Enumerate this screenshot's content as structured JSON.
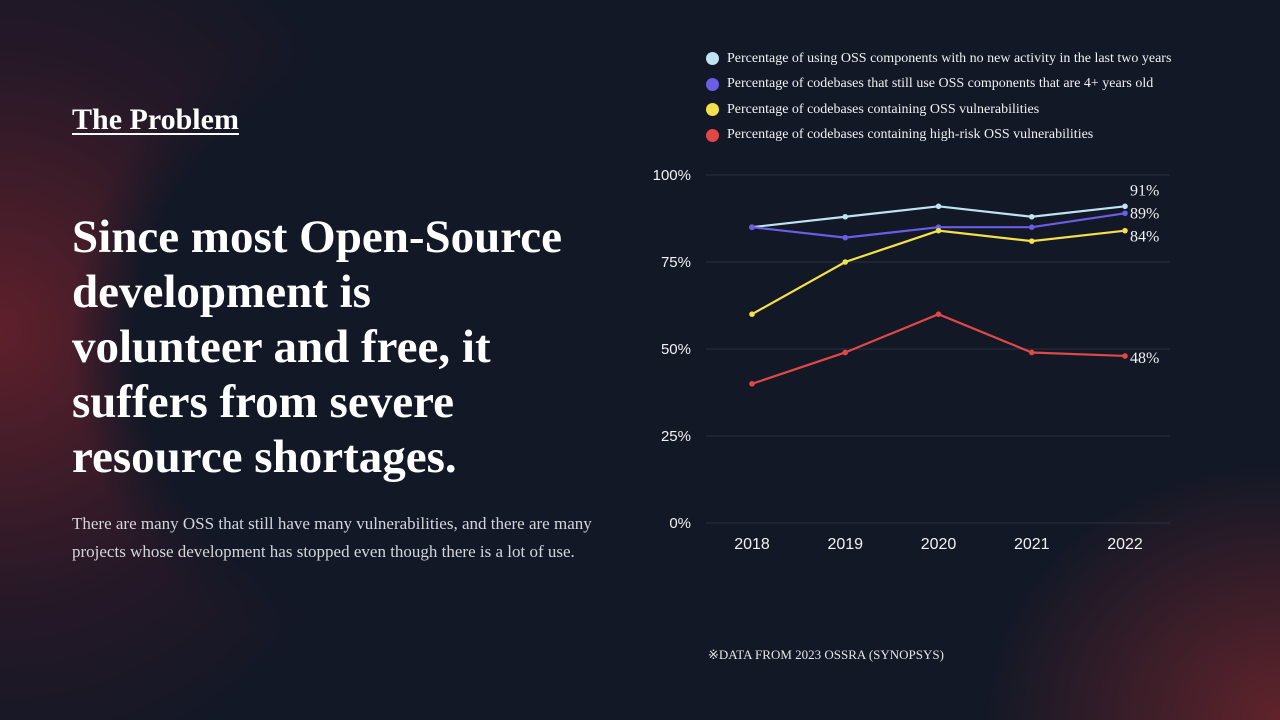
{
  "section_title": "The Problem",
  "headline": "Since most Open-Source development is volunteer and free, it suffers from severe resource shortages.",
  "body": "There are many OSS that still have many vulnerabilities, and there are many projects whose development has stopped even though there is a lot of use.",
  "source_note": "※DATA FROM 2023 OSSRA (SYNOPSYS)",
  "chart_data": {
    "type": "line",
    "categories": [
      "2018",
      "2019",
      "2020",
      "2021",
      "2022"
    ],
    "ylim": [
      0,
      100
    ],
    "yticks": [
      "0%",
      "25%",
      "50%",
      "75%",
      "100%"
    ],
    "ytick_values": [
      0,
      25,
      50,
      75,
      100
    ],
    "grid": true,
    "legend_position": "top",
    "series": [
      {
        "name": "Percentage of using OSS components with no new activity in the last two years",
        "color": "#bde4f0",
        "values": [
          85,
          88,
          91,
          88,
          91
        ],
        "end_label": "91%"
      },
      {
        "name": "Percentage of codebases that still use OSS components that are 4+ years old",
        "color": "#6a5de6",
        "values": [
          85,
          82,
          85,
          85,
          89
        ],
        "end_label": "89%"
      },
      {
        "name": "Percentage of codebases containing OSS vulnerabilities",
        "color": "#f3e04a",
        "values": [
          60,
          75,
          84,
          81,
          84
        ],
        "end_label": "84%"
      },
      {
        "name": "Percentage of codebases containing high-risk OSS vulnerabilities",
        "color": "#e04848",
        "values": [
          40,
          49,
          60,
          49,
          48
        ],
        "end_label": "48%"
      }
    ]
  }
}
